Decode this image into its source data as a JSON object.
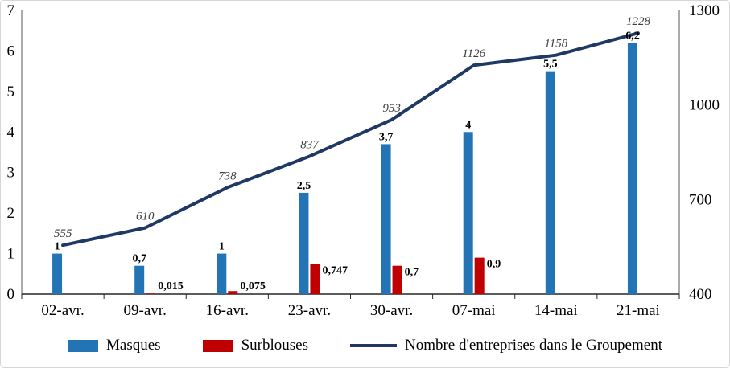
{
  "chart_data": {
    "type": "combo",
    "title": "",
    "categories": [
      "02-avr.",
      "09-avr.",
      "16-avr.",
      "23-avr.",
      "30-avr.",
      "07-mai",
      "14-mai",
      "21-mai"
    ],
    "series": [
      {
        "name": "Masques",
        "type": "bar",
        "axis": "left",
        "color": "#2374B5",
        "values": [
          1,
          0.7,
          1,
          2.5,
          3.7,
          4,
          5.5,
          6.2
        ],
        "labels": [
          "1",
          "0,7",
          "1",
          "2,5",
          "3,7",
          "4",
          "5,5",
          "6,2"
        ]
      },
      {
        "name": "Surblouses",
        "type": "bar",
        "axis": "left",
        "color": "#C00000",
        "values": [
          null,
          0.015,
          0.075,
          0.747,
          0.7,
          0.9,
          null,
          null
        ],
        "labels": [
          "",
          "0,015",
          "0,075",
          "0,747",
          "0,7",
          "0,9",
          "",
          ""
        ]
      },
      {
        "name": "Nombre d'entreprises dans le Groupement",
        "type": "line",
        "axis": "right",
        "color": "#1F3864",
        "values": [
          555,
          610,
          738,
          837,
          953,
          1126,
          1158,
          1228
        ],
        "labels": [
          "555",
          "610",
          "738",
          "837",
          "953",
          "1126",
          "1158",
          "1228"
        ]
      }
    ],
    "left_axis": {
      "min": 0,
      "max": 7,
      "ticks": [
        0,
        1,
        2,
        3,
        4,
        5,
        6,
        7
      ]
    },
    "right_axis": {
      "min": 400,
      "max": 1300,
      "ticks": [
        400,
        700,
        1000,
        1300
      ]
    },
    "grid": false,
    "legend_position": "bottom",
    "axis_line_color": "#595959",
    "x_axis_line_color": "#262626"
  }
}
